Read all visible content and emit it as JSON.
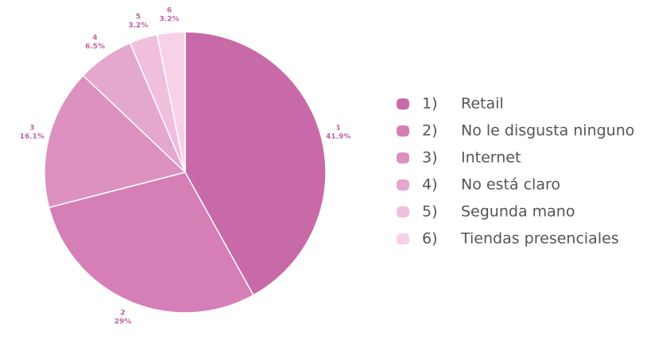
{
  "chart_data": {
    "type": "pie",
    "categories": [
      "Retail",
      "No le disgusta ninguno",
      "Internet",
      "No está claro",
      "Segunda mano",
      "Tiendas presenciales"
    ],
    "slice_labels": [
      "1",
      "2",
      "3",
      "4",
      "5",
      "6"
    ],
    "legend_numbers": [
      "1)",
      "2)",
      "3)",
      "4)",
      "5)",
      "6)"
    ],
    "values": [
      41.9,
      29,
      16.1,
      6.5,
      3.2,
      3.2
    ],
    "value_labels": [
      "41.9%",
      "29%",
      "16.1%",
      "6.5%",
      "3.2%",
      "3.2%"
    ],
    "colors": [
      "#c96aa8",
      "#d67fb6",
      "#dd91c1",
      "#e4a7cd",
      "#f0bfdd",
      "#f7d2e7"
    ]
  }
}
